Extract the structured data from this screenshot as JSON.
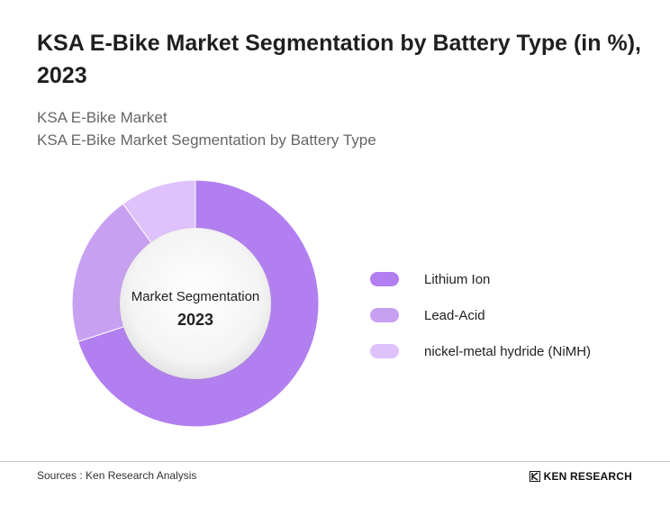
{
  "header": {
    "title": "KSA E-Bike Market Segmentation by Battery Type (in %), 2023",
    "subtitle_1": "KSA E-Bike Market",
    "subtitle_2": "KSA E-Bike Market Segmentation by Battery Type"
  },
  "chart_data": {
    "type": "pie",
    "center_label": "Market Segmentation",
    "center_year": "2023",
    "categories": [
      "Lithium Ion",
      "Lead-Acid",
      "nickel-metal hydride (NiMH)"
    ],
    "values": [
      70,
      20,
      10
    ],
    "colors": [
      "#b27ff0",
      "#c8a0f1",
      "#dfc2fb"
    ],
    "legend": "right"
  },
  "footer": {
    "sources": "Sources : Ken Research Analysis",
    "brand": "KEN RESEARCH"
  }
}
